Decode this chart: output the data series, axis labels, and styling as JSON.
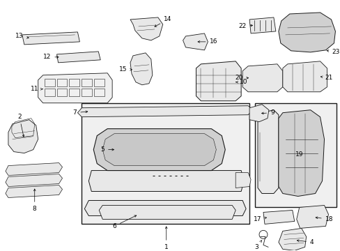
{
  "bg_color": "#ffffff",
  "fig_width": 4.89,
  "fig_height": 3.6,
  "dpi": 100,
  "line_color": "#1a1a1a",
  "label_color": "#000000",
  "label_fontsize": 6.5,
  "arrow_color": "#000000",
  "fill_light": "#e8e8e8",
  "fill_mid": "#d0d0d0",
  "fill_white": "#f8f8f8"
}
